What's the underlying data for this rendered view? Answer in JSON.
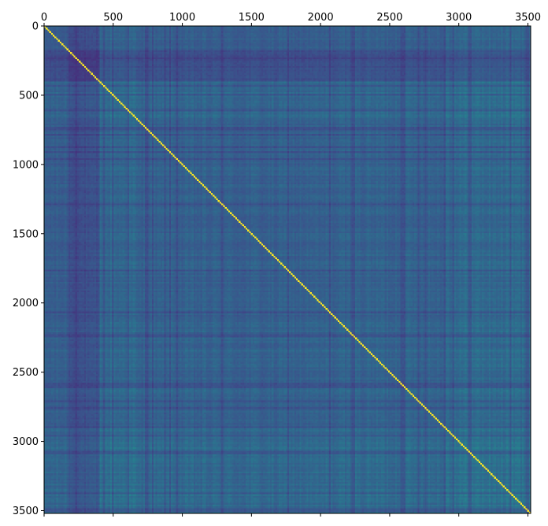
{
  "chart_data": {
    "type": "heatmap",
    "title": "",
    "xlabel": "",
    "ylabel": "",
    "colormap": "viridis",
    "matrix_size": 3520,
    "xlim": [
      0,
      3520
    ],
    "ylim": [
      3520,
      0
    ],
    "x_axis_position": "top",
    "y_axis_inverted": true,
    "grid": false,
    "legend": "none",
    "x_ticks": [
      {
        "value": 0,
        "label": "0"
      },
      {
        "value": 500,
        "label": "500"
      },
      {
        "value": 1000,
        "label": "1000"
      },
      {
        "value": 1500,
        "label": "1500"
      },
      {
        "value": 2000,
        "label": "2000"
      },
      {
        "value": 2500,
        "label": "2500"
      },
      {
        "value": 3000,
        "label": "3000"
      },
      {
        "value": 3500,
        "label": "3500"
      }
    ],
    "y_ticks": [
      {
        "value": 0,
        "label": "0"
      },
      {
        "value": 500,
        "label": "500"
      },
      {
        "value": 1000,
        "label": "1000"
      },
      {
        "value": 1500,
        "label": "1500"
      },
      {
        "value": 2000,
        "label": "2000"
      },
      {
        "value": 2500,
        "label": "2500"
      },
      {
        "value": 3000,
        "label": "3000"
      },
      {
        "value": 3500,
        "label": "3500"
      }
    ],
    "diagonal_value": 1.0,
    "background_value_range": [
      0.15,
      0.45
    ],
    "block_structure": [
      {
        "from": 0,
        "to": 170,
        "level": 0.28
      },
      {
        "from": 170,
        "to": 400,
        "level": 0.13
      },
      {
        "from": 400,
        "to": 660,
        "level": 0.38
      },
      {
        "from": 660,
        "to": 2150,
        "level": 0.3
      },
      {
        "from": 2150,
        "to": 2900,
        "level": 0.33
      },
      {
        "from": 2900,
        "to": 3520,
        "level": 0.4
      }
    ],
    "colors": {
      "low": "#3b528b",
      "mid": "#21918c",
      "high": "#fde725"
    }
  }
}
